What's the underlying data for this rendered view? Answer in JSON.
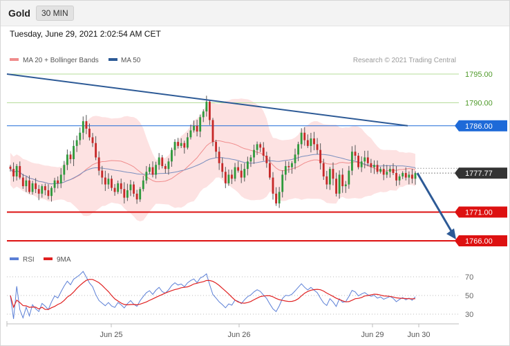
{
  "header": {
    "instrument": "Gold",
    "timeframe": "30 MIN",
    "datetime": "Tuesday, June 29, 2021 2:02:54 AM CET"
  },
  "main_chart": {
    "legend": [
      {
        "label": "MA 20 + Bollinger Bands",
        "color": "#f08c8c"
      },
      {
        "label": "MA 50",
        "color": "#2d5a96"
      }
    ],
    "credit": "Research © 2021 Trading Central",
    "x_ticks": [
      "Jun 25",
      "Jun 26",
      "Jun 29",
      "Jun 30"
    ]
  },
  "rsi_panel": {
    "legend": [
      {
        "label": "RSI",
        "color": "#5b7fd6"
      },
      {
        "label": "9MA",
        "color": "#e02020"
      }
    ],
    "y_ticks": [
      70,
      50,
      30
    ]
  },
  "chart_data": [
    {
      "type": "candlestick",
      "series": [
        {
          "name": "MA 20 + Bollinger Bands",
          "color": "#f08c8c"
        },
        {
          "name": "MA 50",
          "color": "#2d5a96"
        }
      ],
      "x_ticks": [
        "Jun 25",
        "Jun 26",
        "Jun 29",
        "Jun 30"
      ],
      "ylim": [
        1766.0,
        1795.0
      ],
      "levels": [
        {
          "label": "1795.00",
          "value": 1795.0,
          "kind": "resistance",
          "color": "#7ab84a"
        },
        {
          "label": "1790.00",
          "value": 1790.0,
          "kind": "resistance",
          "color": "#7ab84a"
        },
        {
          "label": "1786.00",
          "value": 1786.0,
          "kind": "pivot",
          "color": "#1e6ad8"
        },
        {
          "label": "1777.77",
          "value": 1777.77,
          "kind": "last_price",
          "color": "#333333"
        },
        {
          "label": "1771.00",
          "value": 1771.0,
          "kind": "support",
          "color": "#dd1111"
        },
        {
          "label": "1766.00",
          "value": 1766.0,
          "kind": "support",
          "color": "#dd1111"
        }
      ],
      "close": [
        1778.5,
        1777.2,
        1779.0,
        1777.0,
        1775.5,
        1776.5,
        1774.5,
        1776.0,
        1775.0,
        1774.2,
        1775.5,
        1774.8,
        1773.8,
        1775.2,
        1776.5,
        1776.0,
        1777.5,
        1779.2,
        1781.0,
        1780.2,
        1782.5,
        1783.5,
        1784.8,
        1786.8,
        1785.5,
        1784.0,
        1783.0,
        1780.5,
        1778.2,
        1777.0,
        1775.8,
        1776.8,
        1775.2,
        1774.5,
        1776.0,
        1775.0,
        1773.5,
        1774.8,
        1775.8,
        1774.2,
        1773.2,
        1775.0,
        1776.5,
        1778.0,
        1778.8,
        1777.5,
        1779.2,
        1780.5,
        1779.0,
        1778.5,
        1779.8,
        1781.8,
        1783.2,
        1782.5,
        1783.0,
        1782.2,
        1784.0,
        1785.2,
        1786.0,
        1785.0,
        1787.5,
        1788.5,
        1790.2,
        1787.0,
        1783.2,
        1781.5,
        1779.5,
        1778.0,
        1776.0,
        1777.5,
        1776.8,
        1778.8,
        1778.2,
        1777.0,
        1778.5,
        1779.8,
        1780.5,
        1781.8,
        1782.8,
        1782.2,
        1780.8,
        1779.5,
        1777.0,
        1774.2,
        1772.5,
        1774.5,
        1777.5,
        1779.0,
        1778.8,
        1779.5,
        1781.0,
        1782.8,
        1784.8,
        1783.5,
        1782.5,
        1783.8,
        1782.8,
        1781.8,
        1779.5,
        1777.2,
        1775.8,
        1778.5,
        1776.8,
        1774.2,
        1777.5,
        1775.5,
        1775.8,
        1778.2,
        1781.5,
        1780.8,
        1778.8,
        1779.8,
        1780.5,
        1779.5,
        1778.8,
        1779.2,
        1778.0,
        1778.5,
        1777.5,
        1778.0,
        1778.5,
        1777.8,
        1776.5,
        1777.2,
        1777.8,
        1777.0,
        1777.5,
        1776.8,
        1777.77
      ],
      "forecast": "down to 1766.00"
    },
    {
      "type": "line",
      "ylim": [
        25,
        80
      ],
      "y_ticks": [
        70,
        50,
        30
      ],
      "series": [
        {
          "name": "RSI",
          "color": "#5b7fd6"
        },
        {
          "name": "9MA",
          "color": "#e02020"
        }
      ]
    }
  ]
}
